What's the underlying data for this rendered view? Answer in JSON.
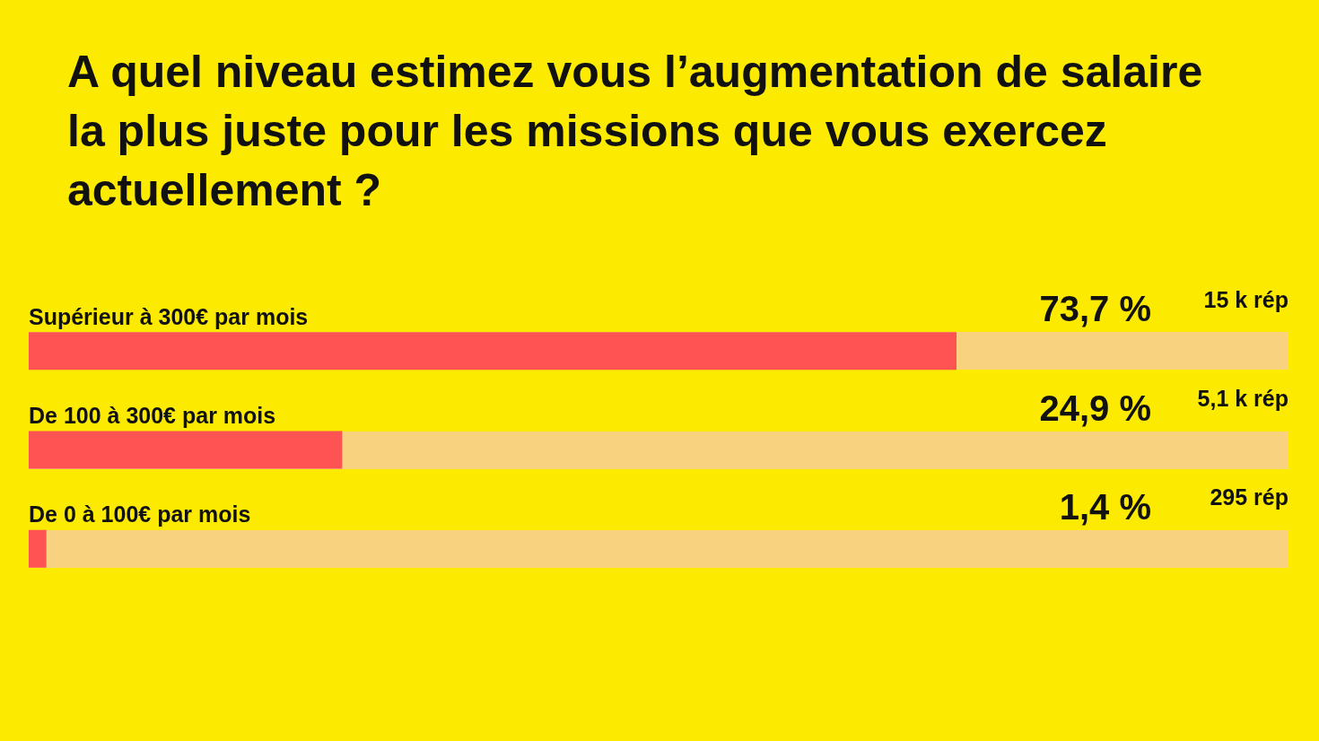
{
  "chart_data": {
    "type": "bar",
    "orientation": "horizontal",
    "title": "A quel niveau estimez vous l’augmentation de salaire la plus juste pour les missions que vous exercez actuellement ?",
    "categories": [
      "Supérieur à 300€ par mois",
      "De 100 à 300€ par mois",
      "De 0 à 100€ par mois"
    ],
    "values": [
      73.7,
      24.9,
      1.4
    ],
    "color": "#fd5353",
    "value_labels": [
      "73,7 %",
      "24,9 %",
      "1,4 %"
    ],
    "annotations": [
      "15 k rép",
      "5,1 k rép",
      "295 rép"
    ],
    "xlim": [
      0,
      100
    ],
    "tick_labels": "y"
  }
}
